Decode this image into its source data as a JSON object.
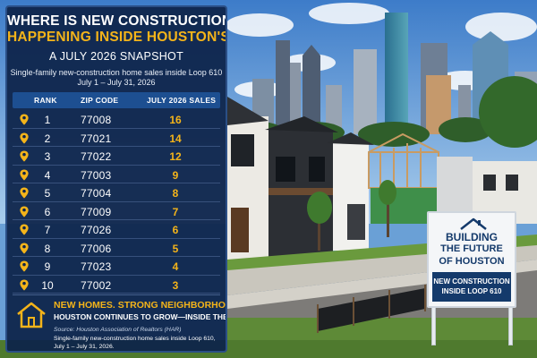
{
  "infographic": {
    "title_line1": "WHERE IS NEW CONSTRUCTION",
    "title_line2": "HAPPENING INSIDE HOUSTON'S LOOP?",
    "subtitle": "A JULY 2026 SNAPSHOT",
    "description_line1": "Single-family new-construction home sales inside Loop 610",
    "description_line2": "July 1 – July 31, 2026",
    "table": {
      "headers": {
        "rank": "RANK",
        "zip": "ZIP CODE",
        "sales": "JULY 2026 SALES"
      },
      "rows": [
        {
          "rank": "1",
          "zip": "77008",
          "sales": "16"
        },
        {
          "rank": "2",
          "zip": "77021",
          "sales": "14"
        },
        {
          "rank": "3",
          "zip": "77022",
          "sales": "12"
        },
        {
          "rank": "4",
          "zip": "77003",
          "sales": "9"
        },
        {
          "rank": "5",
          "zip": "77004",
          "sales": "8"
        },
        {
          "rank": "6",
          "zip": "77009",
          "sales": "7"
        },
        {
          "rank": "7",
          "zip": "77026",
          "sales": "6"
        },
        {
          "rank": "8",
          "zip": "77006",
          "sales": "5"
        },
        {
          "rank": "9",
          "zip": "77023",
          "sales": "4"
        },
        {
          "rank": "10",
          "zip": "77002",
          "sales": "3"
        }
      ]
    },
    "footer": {
      "tagline_line1": "NEW HOMES. STRONG NEIGHBORHOODS.",
      "tagline_line2": "HOUSTON CONTINUES TO GROW—INSIDE THE LOOP.",
      "source": "Source: Houston Association of Realtors (HAR)",
      "note_line1": "Single-family new-construction home sales inside Loop 610,",
      "note_line2": "July 1 – July 31, 2026."
    }
  },
  "sign": {
    "line1": "BUILDING",
    "line2": "THE FUTURE",
    "line3": "OF HOUSTON",
    "banner_line1": "NEW CONSTRUCTION",
    "banner_line2": "INSIDE LOOP 610"
  },
  "colors": {
    "panel_bg": "#0e244a",
    "accent_gold": "#f4b41a",
    "header_blue": "#1d4f91",
    "sign_navy": "#143a6b"
  },
  "icons": {
    "row_marker": "map-pin-icon",
    "footer": "house-outline-icon",
    "sign": "house-roof-icon"
  }
}
